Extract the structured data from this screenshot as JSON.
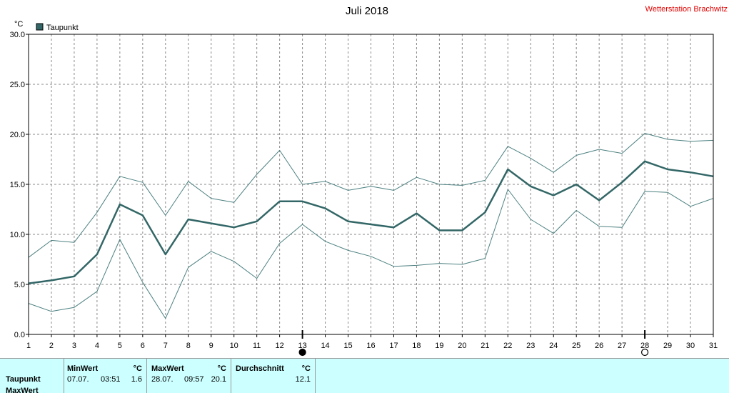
{
  "header": {
    "title": "Juli 2018",
    "station": "Wetterstation Brachwitz"
  },
  "legend": {
    "label": "Taupunkt",
    "color": "#336666"
  },
  "chart_data": {
    "type": "line",
    "unit_label": "°C",
    "x": [
      1,
      2,
      3,
      4,
      5,
      6,
      7,
      8,
      9,
      10,
      11,
      12,
      13,
      14,
      15,
      16,
      17,
      18,
      19,
      20,
      21,
      22,
      23,
      24,
      25,
      26,
      27,
      28,
      29,
      30,
      31
    ],
    "ylim": [
      0,
      30
    ],
    "yticks": [
      "0.0",
      "5.0",
      "10.0",
      "15.0",
      "20.0",
      "25.0",
      "30.0"
    ],
    "grid": true,
    "legend_position": "top-left",
    "series": [
      {
        "name": "Taupunkt",
        "role": "mean",
        "color": "#336666",
        "values": [
          5.1,
          5.4,
          5.8,
          8.0,
          13.0,
          11.9,
          8.0,
          11.5,
          11.1,
          10.7,
          11.3,
          13.3,
          13.3,
          12.6,
          11.3,
          11.0,
          10.7,
          12.1,
          10.4,
          10.4,
          12.2,
          16.5,
          14.8,
          13.9,
          15.0,
          13.4,
          15.2,
          17.3,
          16.5,
          16.2,
          15.8
        ]
      },
      {
        "role": "max",
        "color": "#4d8080",
        "values": [
          7.7,
          9.4,
          9.2,
          12.2,
          15.8,
          15.2,
          11.9,
          15.3,
          13.6,
          13.2,
          16.0,
          18.4,
          15.0,
          15.3,
          14.4,
          14.8,
          14.4,
          15.7,
          15.0,
          14.9,
          15.4,
          18.8,
          17.6,
          16.2,
          17.9,
          18.5,
          18.1,
          20.1,
          19.5,
          19.3,
          19.4
        ]
      },
      {
        "role": "min",
        "color": "#4d8080",
        "values": [
          3.1,
          2.3,
          2.7,
          4.3,
          9.5,
          5.2,
          1.6,
          6.7,
          8.3,
          7.3,
          5.6,
          9.1,
          11.0,
          9.3,
          8.4,
          7.8,
          6.8,
          6.9,
          7.1,
          7.0,
          7.6,
          14.5,
          11.5,
          10.1,
          12.4,
          10.8,
          10.7,
          14.3,
          14.2,
          12.8,
          13.6
        ]
      }
    ],
    "markers": [
      {
        "day": 13,
        "symbol": "filled-circle"
      },
      {
        "day": 28,
        "symbol": "open-circle"
      }
    ]
  },
  "stats": {
    "row_labels": [
      "Taupunkt",
      "MaxWert"
    ],
    "min": {
      "header": "MinWert",
      "unit": "°C",
      "date": "07.07.",
      "time": "03:51",
      "value": "1.6"
    },
    "max": {
      "header": "MaxWert",
      "unit": "°C",
      "date": "28.07.",
      "time": "09:57",
      "value": "20.1"
    },
    "avg": {
      "header": "Durchschnitt",
      "unit": "°C",
      "value": "12.1"
    }
  }
}
